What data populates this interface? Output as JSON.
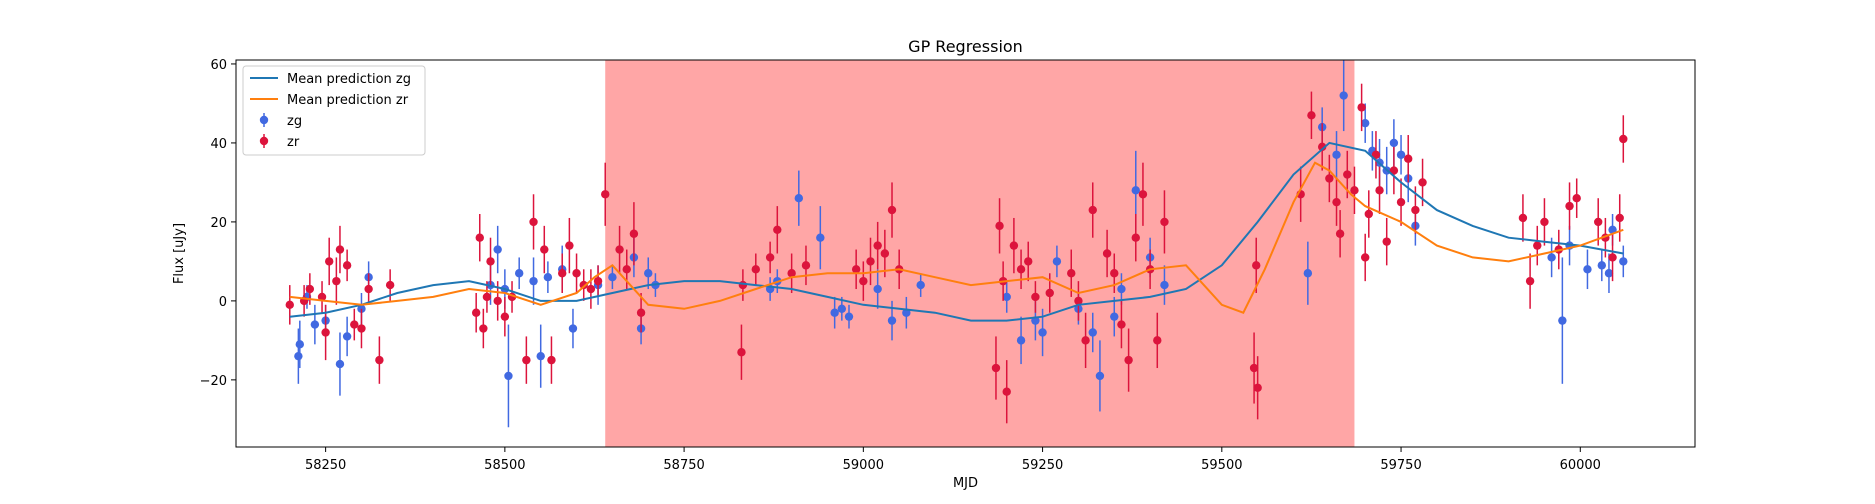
{
  "chart_data": {
    "type": "scatter",
    "title": "GP Regression",
    "xlabel": "MJD",
    "ylabel": "Flux [uJy]",
    "xlim": [
      58125,
      60160
    ],
    "ylim": [
      -37,
      61
    ],
    "xticks": [
      58250,
      58500,
      58750,
      59000,
      59250,
      59500,
      59750,
      60000
    ],
    "yticks": [
      -20,
      0,
      20,
      40,
      60
    ],
    "grid": false,
    "legend_position": "top-left",
    "shaded_region": {
      "x_start": 58640,
      "x_end": 59685,
      "color": "#ffa6a6"
    },
    "colors": {
      "zg": "#4169e1",
      "zr": "#dc143c",
      "mean_zg": "#1f77b4",
      "mean_zr": "#ff7f0e",
      "shade": "#ffa6a6"
    },
    "series": [
      {
        "name": "Mean prediction zg",
        "kind": "line",
        "x": [
          58200,
          58250,
          58300,
          58350,
          58400,
          58450,
          58500,
          58550,
          58600,
          58650,
          58700,
          58750,
          58800,
          58850,
          58900,
          58950,
          59000,
          59050,
          59100,
          59150,
          59200,
          59250,
          59300,
          59350,
          59400,
          59450,
          59500,
          59550,
          59600,
          59650,
          59700,
          59750,
          59800,
          59850,
          59900,
          59950,
          60000,
          60060
        ],
        "y": [
          -4,
          -3,
          -1,
          2,
          4,
          5,
          3,
          0,
          0,
          2,
          4,
          5,
          5,
          4,
          3,
          1,
          -1,
          -2,
          -3,
          -5,
          -5,
          -4,
          -1,
          0,
          1,
          3,
          9,
          20,
          32,
          40,
          38,
          30,
          23,
          19,
          16,
          15,
          14,
          12
        ]
      },
      {
        "name": "Mean prediction zr",
        "kind": "line",
        "x": [
          58200,
          58250,
          58300,
          58350,
          58400,
          58450,
          58500,
          58550,
          58600,
          58625,
          58650,
          58675,
          58700,
          58750,
          58800,
          58850,
          58900,
          58950,
          59000,
          59050,
          59100,
          59150,
          59200,
          59250,
          59300,
          59350,
          59400,
          59450,
          59500,
          59530,
          59560,
          59600,
          59630,
          59650,
          59680,
          59700,
          59750,
          59800,
          59850,
          59900,
          59950,
          60000,
          60060
        ],
        "y": [
          1,
          0,
          -1,
          0,
          1,
          3,
          2,
          -1,
          2,
          6,
          9,
          4,
          -1,
          -2,
          0,
          3,
          6,
          7,
          7,
          8,
          6,
          4,
          5,
          6,
          2,
          4,
          8,
          9,
          -1,
          -3,
          8,
          25,
          35,
          33,
          27,
          24,
          20,
          14,
          11,
          10,
          12,
          14,
          18
        ]
      },
      {
        "name": "zg",
        "kind": "errorbar",
        "points": [
          [
            58212,
            -14,
            7
          ],
          [
            58214,
            -11,
            6
          ],
          [
            58224,
            1,
            3
          ],
          [
            58235,
            -6,
            5
          ],
          [
            58250,
            -5,
            4
          ],
          [
            58270,
            -16,
            8
          ],
          [
            58280,
            -9,
            5
          ],
          [
            58300,
            -2,
            4
          ],
          [
            58310,
            6,
            4
          ],
          [
            58480,
            4,
            5
          ],
          [
            58490,
            13,
            6
          ],
          [
            58500,
            3,
            5
          ],
          [
            58505,
            -19,
            13
          ],
          [
            58520,
            7,
            4
          ],
          [
            58540,
            5,
            6
          ],
          [
            58550,
            -14,
            8
          ],
          [
            58560,
            6,
            4
          ],
          [
            58580,
            8,
            6
          ],
          [
            58595,
            -7,
            5
          ],
          [
            58630,
            4,
            5
          ],
          [
            58650,
            6,
            3
          ],
          [
            58680,
            11,
            5
          ],
          [
            58690,
            -7,
            4
          ],
          [
            58700,
            7,
            4
          ],
          [
            58710,
            4,
            3
          ],
          [
            58870,
            3,
            3
          ],
          [
            58880,
            5,
            3
          ],
          [
            58910,
            26,
            7
          ],
          [
            58940,
            16,
            8
          ],
          [
            58960,
            -3,
            4
          ],
          [
            58970,
            -2,
            3
          ],
          [
            58980,
            -4,
            3
          ],
          [
            59020,
            3,
            5
          ],
          [
            59040,
            -5,
            5
          ],
          [
            59060,
            -3,
            4
          ],
          [
            59080,
            4,
            3
          ],
          [
            59200,
            1,
            4
          ],
          [
            59220,
            -10,
            6
          ],
          [
            59240,
            -5,
            5
          ],
          [
            59250,
            -8,
            6
          ],
          [
            59270,
            10,
            4
          ],
          [
            59300,
            -2,
            4
          ],
          [
            59320,
            -8,
            5
          ],
          [
            59330,
            -19,
            9
          ],
          [
            59350,
            -4,
            5
          ],
          [
            59360,
            3,
            4
          ],
          [
            59380,
            28,
            10
          ],
          [
            59400,
            11,
            5
          ],
          [
            59420,
            4,
            5
          ],
          [
            59620,
            7,
            8
          ],
          [
            59640,
            44,
            5
          ],
          [
            59660,
            37,
            6
          ],
          [
            59670,
            52,
            9
          ],
          [
            59700,
            45,
            5
          ],
          [
            59710,
            38,
            5
          ],
          [
            59720,
            35,
            6
          ],
          [
            59730,
            33,
            6
          ],
          [
            59740,
            40,
            6
          ],
          [
            59750,
            37,
            5
          ],
          [
            59760,
            31,
            6
          ],
          [
            59770,
            19,
            5
          ],
          [
            59960,
            11,
            5
          ],
          [
            59975,
            -5,
            16
          ],
          [
            59985,
            14,
            5
          ],
          [
            60010,
            8,
            5
          ],
          [
            60030,
            9,
            4
          ],
          [
            60040,
            7,
            5
          ],
          [
            60045,
            18,
            4
          ],
          [
            60060,
            10,
            4
          ]
        ]
      },
      {
        "name": "zr",
        "kind": "errorbar",
        "points": [
          [
            58200,
            -1,
            5
          ],
          [
            58220,
            0,
            4
          ],
          [
            58228,
            3,
            4
          ],
          [
            58245,
            1,
            4
          ],
          [
            58250,
            -8,
            7
          ],
          [
            58255,
            10,
            6
          ],
          [
            58265,
            5,
            6
          ],
          [
            58270,
            13,
            6
          ],
          [
            58280,
            9,
            4
          ],
          [
            58290,
            -6,
            4
          ],
          [
            58300,
            -7,
            5
          ],
          [
            58310,
            3,
            4
          ],
          [
            58325,
            -15,
            6
          ],
          [
            58340,
            4,
            4
          ],
          [
            58460,
            -3,
            5
          ],
          [
            58465,
            16,
            6
          ],
          [
            58470,
            -7,
            5
          ],
          [
            58475,
            1,
            4
          ],
          [
            58480,
            10,
            6
          ],
          [
            58490,
            0,
            5
          ],
          [
            58500,
            -4,
            5
          ],
          [
            58510,
            1,
            4
          ],
          [
            58530,
            -15,
            6
          ],
          [
            58540,
            20,
            7
          ],
          [
            58555,
            13,
            6
          ],
          [
            58565,
            -15,
            6
          ],
          [
            58580,
            7,
            5
          ],
          [
            58590,
            14,
            7
          ],
          [
            58600,
            7,
            5
          ],
          [
            58610,
            4,
            4
          ],
          [
            58620,
            3,
            5
          ],
          [
            58630,
            5,
            4
          ],
          [
            58640,
            27,
            8
          ],
          [
            58660,
            13,
            6
          ],
          [
            58670,
            8,
            5
          ],
          [
            58680,
            17,
            8
          ],
          [
            58690,
            -3,
            5
          ],
          [
            58830,
            -13,
            7
          ],
          [
            58832,
            4,
            4
          ],
          [
            58850,
            8,
            4
          ],
          [
            58870,
            11,
            4
          ],
          [
            58880,
            18,
            6
          ],
          [
            58900,
            7,
            5
          ],
          [
            58920,
            9,
            5
          ],
          [
            58990,
            8,
            5
          ],
          [
            59000,
            5,
            5
          ],
          [
            59010,
            10,
            6
          ],
          [
            59020,
            14,
            6
          ],
          [
            59030,
            12,
            6
          ],
          [
            59040,
            23,
            7
          ],
          [
            59050,
            8,
            5
          ],
          [
            59185,
            -17,
            8
          ],
          [
            59190,
            19,
            7
          ],
          [
            59195,
            5,
            5
          ],
          [
            59200,
            -23,
            8
          ],
          [
            59210,
            14,
            7
          ],
          [
            59220,
            8,
            5
          ],
          [
            59230,
            10,
            5
          ],
          [
            59240,
            1,
            4
          ],
          [
            59260,
            2,
            5
          ],
          [
            59290,
            7,
            6
          ],
          [
            59300,
            0,
            5
          ],
          [
            59310,
            -10,
            7
          ],
          [
            59320,
            23,
            7
          ],
          [
            59340,
            12,
            6
          ],
          [
            59350,
            7,
            5
          ],
          [
            59360,
            -6,
            6
          ],
          [
            59370,
            -15,
            8
          ],
          [
            59380,
            16,
            6
          ],
          [
            59390,
            27,
            8
          ],
          [
            59400,
            8,
            5
          ],
          [
            59410,
            -10,
            7
          ],
          [
            59420,
            20,
            8
          ],
          [
            59545,
            -17,
            9
          ],
          [
            59548,
            9,
            7
          ],
          [
            59550,
            -22,
            8
          ],
          [
            59610,
            27,
            7
          ],
          [
            59625,
            47,
            6
          ],
          [
            59640,
            39,
            6
          ],
          [
            59650,
            31,
            6
          ],
          [
            59660,
            25,
            6
          ],
          [
            59665,
            17,
            6
          ],
          [
            59675,
            32,
            6
          ],
          [
            59685,
            28,
            6
          ],
          [
            59695,
            49,
            6
          ],
          [
            59700,
            11,
            6
          ],
          [
            59705,
            22,
            6
          ],
          [
            59715,
            37,
            6
          ],
          [
            59720,
            28,
            6
          ],
          [
            59730,
            15,
            6
          ],
          [
            59740,
            33,
            6
          ],
          [
            59750,
            25,
            6
          ],
          [
            59760,
            36,
            6
          ],
          [
            59770,
            23,
            6
          ],
          [
            59780,
            30,
            6
          ],
          [
            59920,
            21,
            6
          ],
          [
            59930,
            5,
            7
          ],
          [
            59940,
            14,
            5
          ],
          [
            59950,
            20,
            6
          ],
          [
            59970,
            13,
            5
          ],
          [
            59985,
            24,
            6
          ],
          [
            59995,
            26,
            5
          ],
          [
            60025,
            20,
            6
          ],
          [
            60035,
            16,
            5
          ],
          [
            60045,
            11,
            6
          ],
          [
            60055,
            21,
            6
          ],
          [
            60060,
            41,
            6
          ]
        ]
      }
    ]
  }
}
